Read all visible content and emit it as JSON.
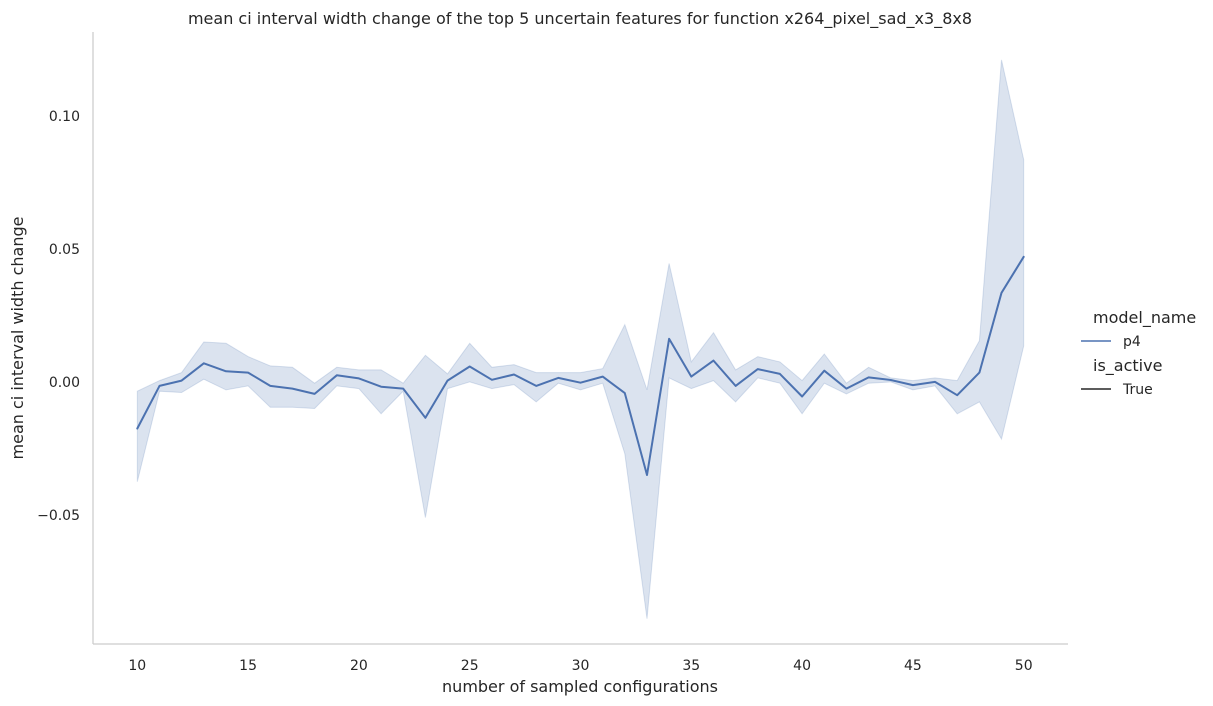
{
  "chart_data": {
    "type": "line",
    "title": "mean ci interval width change of the top 5 uncertain features for function x264_pixel_sad_x3_8x8",
    "xlabel": "number of sampled configurations",
    "ylabel": "mean ci interval width change",
    "xlim": [
      8,
      52
    ],
    "ylim": [
      -0.0985,
      0.1315
    ],
    "xticks": [
      10,
      15,
      20,
      25,
      30,
      35,
      40,
      45,
      50
    ],
    "xtick_labels": [
      "10",
      "15",
      "20",
      "25",
      "30",
      "35",
      "40",
      "45",
      "50"
    ],
    "yticks": [
      -0.05,
      0.0,
      0.05,
      0.1
    ],
    "ytick_labels": [
      "−0.05",
      "0.00",
      "0.05",
      "0.10"
    ],
    "grid": false,
    "legend": {
      "placement": "right",
      "groups": [
        {
          "title": "model_name",
          "entries": [
            {
              "label": "p4",
              "color": "#4c72b0"
            }
          ]
        },
        {
          "title": "is_active",
          "entries": [
            {
              "label": "True",
              "color": "#262626"
            }
          ]
        }
      ]
    },
    "series": [
      {
        "name": "p4",
        "color": "#4c72b0",
        "band_color": "#4c72b0",
        "x": [
          10,
          11,
          12,
          13,
          14,
          15,
          16,
          17,
          18,
          19,
          20,
          21,
          22,
          23,
          24,
          25,
          26,
          27,
          28,
          29,
          30,
          31,
          32,
          33,
          34,
          35,
          36,
          37,
          38,
          39,
          40,
          41,
          42,
          43,
          44,
          45,
          46,
          47,
          48,
          49,
          50
        ],
        "y": [
          -0.0175,
          -0.0015,
          0.0005,
          0.007,
          0.004,
          0.0035,
          -0.0015,
          -0.0025,
          -0.0045,
          0.0025,
          0.0013,
          -0.0018,
          -0.0025,
          -0.0135,
          0.0005,
          0.0058,
          0.0008,
          0.0028,
          -0.0015,
          0.0015,
          -0.0003,
          0.002,
          -0.0042,
          -0.035,
          0.0162,
          0.002,
          0.008,
          -0.0015,
          0.0048,
          0.003,
          -0.0055,
          0.0042,
          -0.0025,
          0.0017,
          0.0007,
          -0.0012,
          0.0,
          -0.005,
          0.0035,
          0.0335,
          0.047
        ],
        "y_lower": [
          -0.0375,
          -0.0035,
          -0.004,
          0.001,
          -0.003,
          -0.0015,
          -0.0095,
          -0.0095,
          -0.01,
          -0.0015,
          -0.0025,
          -0.012,
          -0.0035,
          -0.051,
          -0.0025,
          0.0,
          -0.0025,
          -0.001,
          -0.0075,
          -0.0005,
          -0.003,
          -0.0005,
          -0.027,
          -0.089,
          0.0015,
          -0.0025,
          0.0005,
          -0.0075,
          0.0015,
          -0.0005,
          -0.012,
          -0.0005,
          -0.0045,
          -0.0005,
          0.0,
          -0.003,
          -0.0015,
          -0.012,
          -0.0075,
          -0.0215,
          0.0135
        ],
        "y_upper": [
          -0.0035,
          0.0005,
          0.0035,
          0.015,
          0.0145,
          0.0095,
          0.006,
          0.0055,
          -0.0005,
          0.0055,
          0.0045,
          0.0045,
          -0.0005,
          0.01,
          0.003,
          0.0145,
          0.0055,
          0.0065,
          0.0035,
          0.0035,
          0.0035,
          0.005,
          0.0215,
          -0.003,
          0.0445,
          0.0075,
          0.0185,
          0.0045,
          0.0095,
          0.0075,
          0.0005,
          0.0105,
          -0.0005,
          0.0055,
          0.0015,
          0.0005,
          0.0015,
          0.0005,
          0.0155,
          0.121,
          0.0835
        ]
      }
    ]
  }
}
